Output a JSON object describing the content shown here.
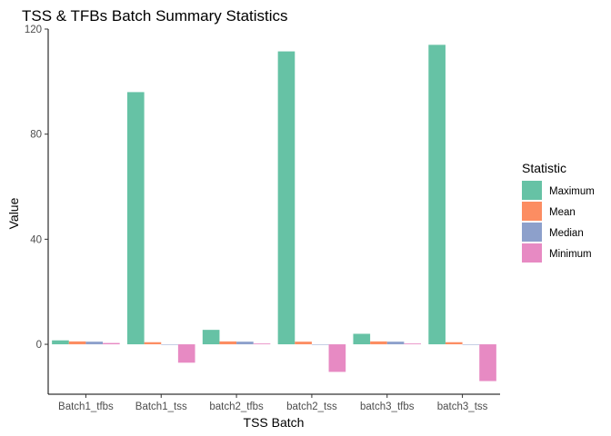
{
  "chart_data": {
    "type": "bar",
    "title": "TSS & TFBs Batch Summary Statistics",
    "xlabel": "TSS Batch",
    "ylabel": "Value",
    "ylim": [
      -19,
      120
    ],
    "yticks": [
      0,
      40,
      80,
      120
    ],
    "grid": false,
    "legend": {
      "title": "Statistic",
      "placement": "right"
    },
    "categories": [
      "Batch1_tfbs",
      "Batch1_tss",
      "batch2_tfbs",
      "batch2_tss",
      "batch3_tfbs",
      "batch3_tss"
    ],
    "series": [
      {
        "name": "Maximum",
        "color": "#66c2a5",
        "values": [
          1.5,
          96,
          5.5,
          111.5,
          4,
          114
        ]
      },
      {
        "name": "Mean",
        "color": "#fc8d62",
        "values": [
          1.1,
          0.8,
          1.1,
          1.0,
          1.1,
          0.8
        ]
      },
      {
        "name": "Median",
        "color": "#8da0cb",
        "values": [
          1.0,
          0,
          1.0,
          0,
          1.0,
          0
        ]
      },
      {
        "name": "Minimum",
        "color": "#e78ac3",
        "values": [
          0.5,
          -7,
          0.3,
          -10.5,
          0.3,
          -14
        ]
      }
    ]
  }
}
